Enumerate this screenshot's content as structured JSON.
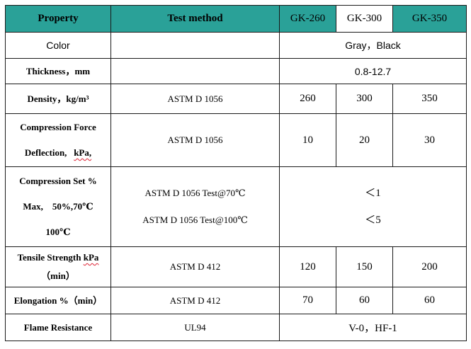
{
  "table": {
    "header": {
      "property": "Property",
      "test_method": "Test method",
      "grades": [
        "GK-260",
        "GK-300",
        "GK-350"
      ]
    },
    "rows": {
      "color": {
        "property": "Color",
        "method": "",
        "value": "Gray，Black"
      },
      "thickness": {
        "property": "Thickness，mm",
        "method": "",
        "value": "0.8-12.7"
      },
      "density": {
        "property": "Density，kg/m³",
        "method": "ASTM D 1056",
        "values": [
          "260",
          "300",
          "350"
        ]
      },
      "compression_force": {
        "property_line1": "Compression Force",
        "property_line2_a": "Deflection,",
        "property_line2_b": "kPa,",
        "method": "ASTM D 1056",
        "values": [
          "10",
          "20",
          "30"
        ]
      },
      "compression_set": {
        "property_line1": "Compression Set %",
        "property_line2": "Max,    50%,70℃",
        "property_line3": "100℃",
        "method_line1": "ASTM D 1056 Test@70℃",
        "method_line2": "ASTM D 1056 Test@100℃",
        "value_line1": "＜1",
        "value_line2": "＜5"
      },
      "tensile_strength": {
        "property_line1_a": "Tensile Strength",
        "property_line1_b": "kPa",
        "property_line2": "（min）",
        "method": "ASTM D 412",
        "values": [
          "120",
          "150",
          "200"
        ]
      },
      "elongation": {
        "property": "Elongation %（min）",
        "method": "ASTM D 412",
        "values": [
          "70",
          "60",
          "60"
        ]
      },
      "flame_resistance": {
        "property": "Flame Resistance",
        "method": "UL94",
        "value": "V-0，HF-1"
      }
    }
  },
  "colors": {
    "header_bg": "#2aa198",
    "selected_header_bg": "#ffffff",
    "border": "#1a1a1a"
  }
}
